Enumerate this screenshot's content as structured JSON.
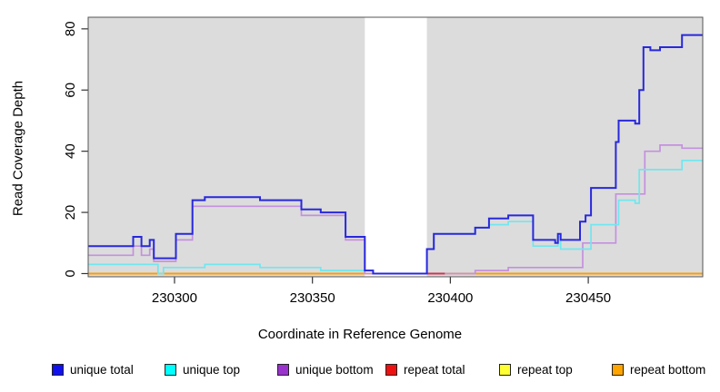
{
  "chart_data": {
    "type": "line",
    "subtype": "step-coverage",
    "title": "",
    "xlabel": "Coordinate in Reference Genome",
    "ylabel": "Read Coverage Depth",
    "x_range": [
      230268.7,
      230491.5
    ],
    "y_range": [
      -1.04,
      83.8
    ],
    "x_ticks": [
      {
        "value": 230300,
        "label": "230300"
      },
      {
        "value": 230350,
        "label": "230350"
      },
      {
        "value": 230400,
        "label": "230400"
      },
      {
        "value": 230450,
        "label": "230450"
      }
    ],
    "y_ticks": [
      {
        "value": 0,
        "label": "0"
      },
      {
        "value": 20,
        "label": "20"
      },
      {
        "value": 40,
        "label": "40"
      },
      {
        "value": 60,
        "label": "60"
      },
      {
        "value": 80,
        "label": "80"
      }
    ],
    "grid": false,
    "plot_background": "#dcdcdc",
    "no_data_gap": {
      "start": 230369,
      "end": 230391.5
    },
    "legend_position": "bottom",
    "series": [
      {
        "name": "unique total",
        "color": "#2828dc",
        "legend_color": "#1111ee",
        "line_width": 2,
        "points": [
          [
            230268.7,
            9
          ],
          [
            230285,
            12
          ],
          [
            230288,
            9
          ],
          [
            230291,
            11
          ],
          [
            230292.5,
            5
          ],
          [
            230300.5,
            13
          ],
          [
            230306.5,
            24
          ],
          [
            230311,
            25
          ],
          [
            230331,
            24
          ],
          [
            230346,
            21
          ],
          [
            230353,
            20
          ],
          [
            230362,
            12
          ],
          [
            230369,
            1
          ],
          [
            230372,
            0
          ],
          [
            230391.5,
            8
          ],
          [
            230394,
            13
          ],
          [
            230409,
            15
          ],
          [
            230414,
            18
          ],
          [
            230421,
            19
          ],
          [
            230430,
            11
          ],
          [
            230438,
            10
          ],
          [
            230439,
            13
          ],
          [
            230440,
            11
          ],
          [
            230447,
            17
          ],
          [
            230449,
            19
          ],
          [
            230451,
            28
          ],
          [
            230460,
            43
          ],
          [
            230461,
            50
          ],
          [
            230467,
            49
          ],
          [
            230468.5,
            60
          ],
          [
            230470,
            74
          ],
          [
            230472.5,
            73
          ],
          [
            230476,
            74
          ],
          [
            230484,
            78
          ],
          [
            230491.5,
            78
          ]
        ]
      },
      {
        "name": "unique top",
        "color": "#6fe7ef",
        "legend_color": "#00ffff",
        "line_width": 1.7,
        "points": [
          [
            230268.7,
            3
          ],
          [
            230294,
            0
          ],
          [
            230296,
            2
          ],
          [
            230311,
            3
          ],
          [
            230331,
            2
          ],
          [
            230346,
            2
          ],
          [
            230353,
            1
          ],
          [
            230369,
            1
          ],
          [
            230372,
            0
          ],
          [
            230391.5,
            8
          ],
          [
            230394,
            13
          ],
          [
            230409,
            15
          ],
          [
            230414,
            16
          ],
          [
            230421,
            17
          ],
          [
            230430,
            9
          ],
          [
            230439,
            12
          ],
          [
            230440,
            8
          ],
          [
            230451,
            16
          ],
          [
            230461,
            24
          ],
          [
            230467,
            23
          ],
          [
            230468.5,
            34
          ],
          [
            230484,
            37
          ],
          [
            230491.5,
            37
          ]
        ]
      },
      {
        "name": "unique bottom",
        "color": "#c490de",
        "legend_color": "#9a32cd",
        "line_width": 1.7,
        "points": [
          [
            230268.7,
            6
          ],
          [
            230285,
            9
          ],
          [
            230288,
            6
          ],
          [
            230291,
            8
          ],
          [
            230292.5,
            4
          ],
          [
            230300.5,
            11
          ],
          [
            230306.5,
            22
          ],
          [
            230346,
            19
          ],
          [
            230362,
            11
          ],
          [
            230369,
            0
          ],
          [
            230409,
            1
          ],
          [
            230421,
            2
          ],
          [
            230448,
            10
          ],
          [
            230460,
            26
          ],
          [
            230470.5,
            40
          ],
          [
            230476,
            42
          ],
          [
            230484,
            41
          ],
          [
            230491.5,
            41
          ]
        ]
      },
      {
        "name": "repeat total",
        "color": "#cc3355",
        "legend_color": "#ee1111",
        "line_width": 2,
        "points": [
          [
            230391.5,
            0
          ],
          [
            230398,
            0
          ]
        ]
      },
      {
        "name": "repeat top",
        "color": "#ffff00",
        "legend_color": "#ffff33",
        "line_width": 1.7,
        "points": [
          [
            230268.7,
            0
          ],
          [
            230491.5,
            0
          ]
        ]
      },
      {
        "name": "repeat bottom",
        "color": "#ff9d00",
        "legend_color": "#ffa500",
        "line_width": 2,
        "points": [
          [
            230268.7,
            0
          ],
          [
            230491.5,
            0
          ]
        ]
      }
    ],
    "draw_order": [
      "repeat top",
      "repeat bottom",
      "unique bottom",
      "repeat total",
      "unique top",
      "unique total"
    ],
    "legend": [
      {
        "label": "unique total",
        "color": "#1111ee"
      },
      {
        "label": "unique top",
        "color": "#00ffff"
      },
      {
        "label": "unique bottom",
        "color": "#9a32cd"
      },
      {
        "label": "repeat total",
        "color": "#ee1111"
      },
      {
        "label": "repeat top",
        "color": "#ffff33"
      },
      {
        "label": "repeat bottom",
        "color": "#ffa500"
      }
    ]
  }
}
